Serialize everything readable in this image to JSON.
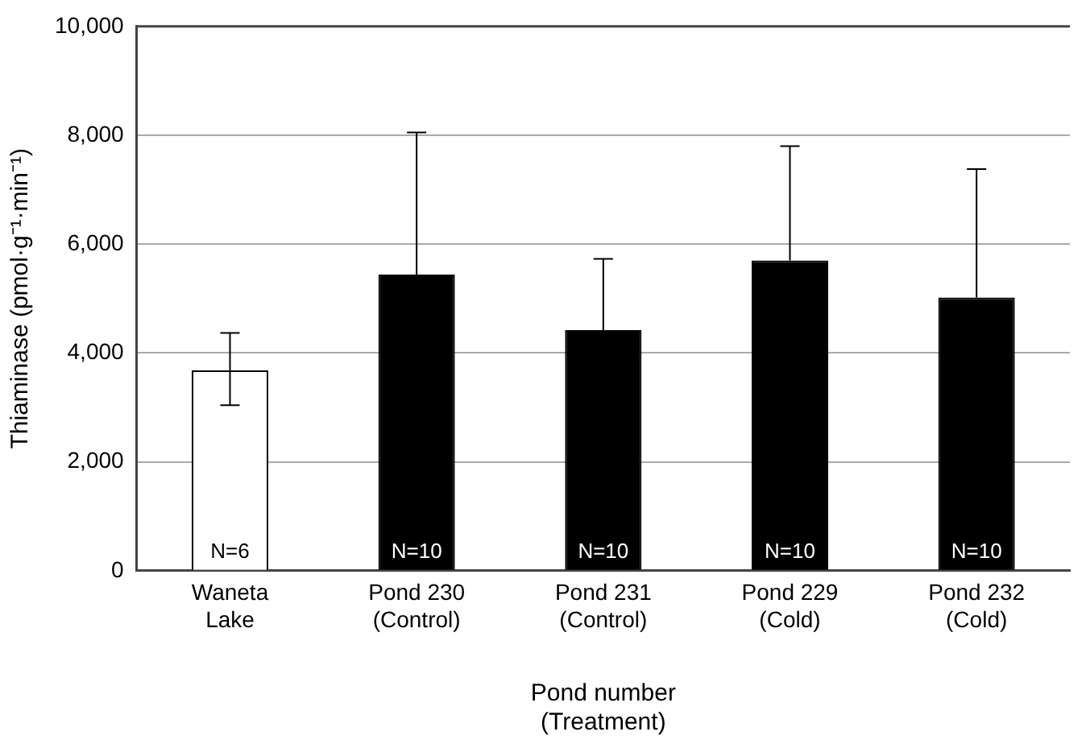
{
  "chart_data": {
    "type": "bar",
    "xlabel": "Pond number\n(Treatment)",
    "ylabel": "Thiaminase (pmol·g⁻¹·min⁻¹)",
    "categories": [
      "Waneta\nLake",
      "Pond 230\n(Control)",
      "Pond 231\n(Control)",
      "Pond 229\n(Cold)",
      "Pond 232\n(Cold)"
    ],
    "values": [
      3680,
      5440,
      4420,
      5700,
      5020
    ],
    "colors": [
      "#ffffff",
      "#000000",
      "#000000",
      "#000000",
      "#000000"
    ],
    "errors": [
      [
        3040,
        4370
      ],
      [
        5440,
        8050
      ],
      [
        4420,
        5730
      ],
      [
        5700,
        7800
      ],
      [
        5020,
        7380
      ]
    ],
    "annotations": [
      "N=6",
      "N=10",
      "N=10",
      "N=10",
      "N=10"
    ],
    "ylim": [
      0,
      10000
    ],
    "yticks": [
      {
        "value": 0,
        "label": "0"
      },
      {
        "value": 2000,
        "label": "2,000"
      },
      {
        "value": 4000,
        "label": "4,000"
      },
      {
        "value": 6000,
        "label": "6,000"
      },
      {
        "value": 8000,
        "label": "8,000"
      },
      {
        "value": 10000,
        "label": "10,000"
      }
    ],
    "grid": "y",
    "legend": false
  }
}
